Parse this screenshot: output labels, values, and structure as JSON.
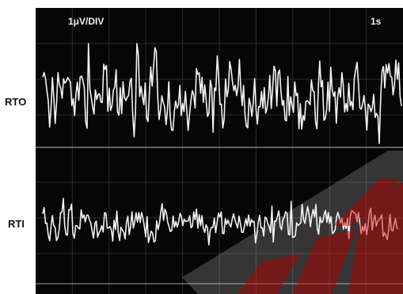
{
  "channels": {
    "rto_label": "RTO",
    "rti_label": "RTI"
  },
  "scope": {
    "vertical_scale": "1μV/DIV",
    "horizontal_scale": "1s",
    "screen_color": "#060606",
    "trace_color": "#f2f2f2",
    "watermark_color": "#cc2a2a"
  },
  "chart_data": {
    "type": "line",
    "title": "",
    "xlabel": "",
    "ylabel": "",
    "annotations": [
      "1μV/DIV",
      "1s"
    ],
    "grid": true,
    "x_divisions": 10,
    "y_divisions_per_trace": 4,
    "series": [
      {
        "name": "RTO",
        "y_range_div": [
          -1.6,
          1.6
        ],
        "peak_to_peak_div": 2.8
      },
      {
        "name": "RTI",
        "y_range_div": [
          -0.9,
          0.9
        ],
        "peak_to_peak_div": 1.4
      }
    ]
  }
}
